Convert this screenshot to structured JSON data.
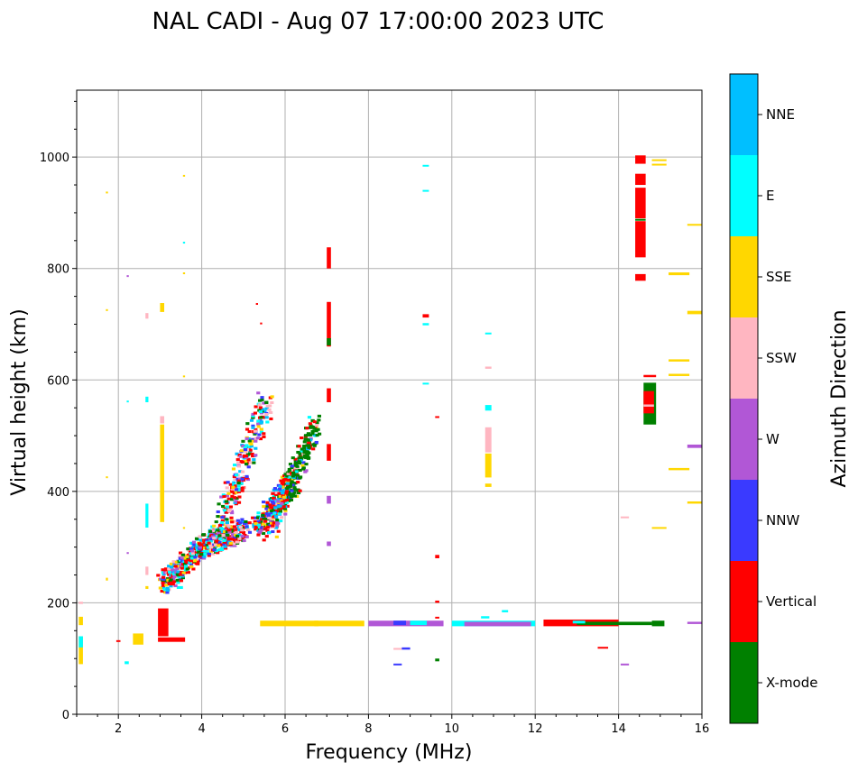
{
  "chart_data": {
    "type": "scatter",
    "title": "NAL CADI - Aug 07 17:00:00 2023 UTC",
    "xlabel": "Frequency (MHz)",
    "ylabel": "Virtual height (km)",
    "xlim": [
      1,
      16
    ],
    "ylim": [
      0,
      1120
    ],
    "xticks": [
      2,
      4,
      6,
      8,
      10,
      12,
      14,
      16
    ],
    "yticks": [
      0,
      200,
      400,
      600,
      800,
      1000
    ],
    "grid": true,
    "colorbar": {
      "label": "Azimuth Direction",
      "categories": [
        {
          "name": "X-mode",
          "color": "#008000"
        },
        {
          "name": "Vertical",
          "color": "#ff0000"
        },
        {
          "name": "NNW",
          "color": "#3a3aff"
        },
        {
          "name": "W",
          "color": "#b157d6"
        },
        {
          "name": "SSW",
          "color": "#ffb6c1"
        },
        {
          "name": "SSE",
          "color": "#ffd700"
        },
        {
          "name": "E",
          "color": "#00ffff"
        },
        {
          "name": "NNE",
          "color": "#00bfff"
        }
      ]
    },
    "segments": [
      {
        "f0": 1.05,
        "f1": 1.15,
        "h0": 90,
        "h1": 140,
        "cat": "SSE"
      },
      {
        "f0": 1.05,
        "f1": 1.15,
        "h0": 160,
        "h1": 175,
        "cat": "SSE"
      },
      {
        "f0": 1.05,
        "f1": 1.15,
        "h0": 198,
        "h1": 202,
        "cat": "SSW"
      },
      {
        "f0": 1.05,
        "f1": 1.15,
        "h0": 120,
        "h1": 140,
        "cat": "E"
      },
      {
        "f0": 1.7,
        "f1": 1.75,
        "h0": 935,
        "h1": 938,
        "cat": "SSE"
      },
      {
        "f0": 1.7,
        "f1": 1.75,
        "h0": 725,
        "h1": 727,
        "cat": "SSE"
      },
      {
        "f0": 1.7,
        "f1": 1.75,
        "h0": 424,
        "h1": 427,
        "cat": "SSE"
      },
      {
        "f0": 1.7,
        "f1": 1.75,
        "h0": 240,
        "h1": 245,
        "cat": "SSE"
      },
      {
        "f0": 1.95,
        "f1": 2.05,
        "h0": 130,
        "h1": 133,
        "cat": "Vertical"
      },
      {
        "f0": 2.15,
        "f1": 2.25,
        "h0": 90,
        "h1": 95,
        "cat": "E"
      },
      {
        "f0": 2.2,
        "f1": 2.25,
        "h0": 785,
        "h1": 788,
        "cat": "W"
      },
      {
        "f0": 2.2,
        "f1": 2.25,
        "h0": 560,
        "h1": 563,
        "cat": "E"
      },
      {
        "f0": 2.2,
        "f1": 2.25,
        "h0": 288,
        "h1": 291,
        "cat": "W"
      },
      {
        "f0": 2.35,
        "f1": 2.6,
        "h0": 125,
        "h1": 145,
        "cat": "SSE"
      },
      {
        "f0": 2.65,
        "f1": 2.72,
        "h0": 710,
        "h1": 720,
        "cat": "SSW"
      },
      {
        "f0": 2.65,
        "f1": 2.72,
        "h0": 560,
        "h1": 570,
        "cat": "E"
      },
      {
        "f0": 2.65,
        "f1": 2.72,
        "h0": 335,
        "h1": 378,
        "cat": "E"
      },
      {
        "f0": 2.65,
        "f1": 2.72,
        "h0": 250,
        "h1": 265,
        "cat": "SSW"
      },
      {
        "f0": 2.65,
        "f1": 2.72,
        "h0": 225,
        "h1": 230,
        "cat": "SSE"
      },
      {
        "f0": 3.0,
        "f1": 3.1,
        "h0": 345,
        "h1": 520,
        "cat": "SSE"
      },
      {
        "f0": 3.0,
        "f1": 3.1,
        "h0": 722,
        "h1": 738,
        "cat": "SSE"
      },
      {
        "f0": 3.0,
        "f1": 3.1,
        "h0": 522,
        "h1": 535,
        "cat": "SSW"
      },
      {
        "f0": 2.95,
        "f1": 3.6,
        "h0": 130,
        "h1": 138,
        "cat": "Vertical"
      },
      {
        "f0": 2.95,
        "f1": 3.2,
        "h0": 140,
        "h1": 190,
        "cat": "Vertical"
      },
      {
        "f0": 3.55,
        "f1": 3.6,
        "h0": 965,
        "h1": 968,
        "cat": "SSE"
      },
      {
        "f0": 3.55,
        "f1": 3.6,
        "h0": 845,
        "h1": 848,
        "cat": "E"
      },
      {
        "f0": 3.55,
        "f1": 3.6,
        "h0": 790,
        "h1": 793,
        "cat": "SSE"
      },
      {
        "f0": 3.55,
        "f1": 3.6,
        "h0": 605,
        "h1": 608,
        "cat": "SSE"
      },
      {
        "f0": 3.55,
        "f1": 3.6,
        "h0": 333,
        "h1": 336,
        "cat": "SSE"
      },
      {
        "f0": 3.4,
        "f1": 3.55,
        "h0": 225,
        "h1": 230,
        "cat": "E"
      },
      {
        "f0": 5.3,
        "f1": 5.35,
        "h0": 735,
        "h1": 738,
        "cat": "Vertical"
      },
      {
        "f0": 5.4,
        "f1": 5.45,
        "h0": 700,
        "h1": 703,
        "cat": "Vertical"
      },
      {
        "f0": 5.4,
        "f1": 6.8,
        "h0": 158,
        "h1": 168,
        "cat": "SSE"
      },
      {
        "f0": 7.0,
        "f1": 7.1,
        "h0": 800,
        "h1": 838,
        "cat": "Vertical"
      },
      {
        "f0": 7.0,
        "f1": 7.1,
        "h0": 660,
        "h1": 740,
        "cat": "Vertical"
      },
      {
        "f0": 7.0,
        "f1": 7.1,
        "h0": 560,
        "h1": 585,
        "cat": "Vertical"
      },
      {
        "f0": 7.0,
        "f1": 7.1,
        "h0": 455,
        "h1": 485,
        "cat": "Vertical"
      },
      {
        "f0": 7.0,
        "f1": 7.1,
        "h0": 378,
        "h1": 392,
        "cat": "W"
      },
      {
        "f0": 7.0,
        "f1": 7.1,
        "h0": 302,
        "h1": 310,
        "cat": "W"
      },
      {
        "f0": 7.0,
        "f1": 7.1,
        "h0": 662,
        "h1": 675,
        "cat": "X-mode"
      },
      {
        "f0": 6.7,
        "f1": 7.9,
        "h0": 158,
        "h1": 168,
        "cat": "SSE"
      },
      {
        "f0": 8.0,
        "f1": 9.8,
        "h0": 158,
        "h1": 168,
        "cat": "W"
      },
      {
        "f0": 8.6,
        "f1": 8.9,
        "h0": 160,
        "h1": 168,
        "cat": "NNW"
      },
      {
        "f0": 9.0,
        "f1": 9.4,
        "h0": 160,
        "h1": 168,
        "cat": "E"
      },
      {
        "f0": 8.6,
        "f1": 8.8,
        "h0": 116,
        "h1": 119,
        "cat": "SSW"
      },
      {
        "f0": 8.8,
        "f1": 9.0,
        "h0": 116,
        "h1": 120,
        "cat": "NNW"
      },
      {
        "f0": 8.6,
        "f1": 8.8,
        "h0": 88,
        "h1": 91,
        "cat": "NNW"
      },
      {
        "f0": 9.3,
        "f1": 9.45,
        "h0": 983,
        "h1": 986,
        "cat": "E"
      },
      {
        "f0": 9.3,
        "f1": 9.45,
        "h0": 938,
        "h1": 941,
        "cat": "E"
      },
      {
        "f0": 9.3,
        "f1": 9.45,
        "h0": 712,
        "h1": 718,
        "cat": "Vertical"
      },
      {
        "f0": 9.3,
        "f1": 9.45,
        "h0": 698,
        "h1": 702,
        "cat": "E"
      },
      {
        "f0": 9.3,
        "f1": 9.45,
        "h0": 592,
        "h1": 595,
        "cat": "E"
      },
      {
        "f0": 9.6,
        "f1": 9.7,
        "h0": 532,
        "h1": 535,
        "cat": "Vertical"
      },
      {
        "f0": 9.6,
        "f1": 9.7,
        "h0": 280,
        "h1": 286,
        "cat": "Vertical"
      },
      {
        "f0": 9.6,
        "f1": 9.7,
        "h0": 200,
        "h1": 204,
        "cat": "Vertical"
      },
      {
        "f0": 9.6,
        "f1": 9.7,
        "h0": 172,
        "h1": 175,
        "cat": "Vertical"
      },
      {
        "f0": 9.6,
        "f1": 9.7,
        "h0": 95,
        "h1": 100,
        "cat": "X-mode"
      },
      {
        "f0": 10.0,
        "f1": 12.0,
        "h0": 158,
        "h1": 168,
        "cat": "E"
      },
      {
        "f0": 10.3,
        "f1": 11.9,
        "h0": 158,
        "h1": 166,
        "cat": "W"
      },
      {
        "f0": 11.2,
        "f1": 11.35,
        "h0": 183,
        "h1": 187,
        "cat": "E"
      },
      {
        "f0": 10.7,
        "f1": 10.9,
        "h0": 172,
        "h1": 176,
        "cat": "E"
      },
      {
        "f0": 10.8,
        "f1": 10.95,
        "h0": 682,
        "h1": 685,
        "cat": "E"
      },
      {
        "f0": 10.8,
        "f1": 10.95,
        "h0": 620,
        "h1": 624,
        "cat": "SSW"
      },
      {
        "f0": 10.8,
        "f1": 10.95,
        "h0": 545,
        "h1": 555,
        "cat": "E"
      },
      {
        "f0": 10.8,
        "f1": 10.95,
        "h0": 470,
        "h1": 515,
        "cat": "SSW"
      },
      {
        "f0": 10.8,
        "f1": 10.95,
        "h0": 425,
        "h1": 468,
        "cat": "SSE"
      },
      {
        "f0": 10.8,
        "f1": 10.95,
        "h0": 408,
        "h1": 414,
        "cat": "SSE"
      },
      {
        "f0": 12.2,
        "f1": 14.0,
        "h0": 158,
        "h1": 170,
        "cat": "Vertical"
      },
      {
        "f0": 13.0,
        "f1": 14.8,
        "h0": 160,
        "h1": 166,
        "cat": "X-mode"
      },
      {
        "f0": 12.9,
        "f1": 13.2,
        "h0": 163,
        "h1": 168,
        "cat": "E"
      },
      {
        "f0": 14.8,
        "f1": 15.1,
        "h0": 158,
        "h1": 168,
        "cat": "X-mode"
      },
      {
        "f0": 13.5,
        "f1": 13.75,
        "h0": 118,
        "h1": 121,
        "cat": "Vertical"
      },
      {
        "f0": 14.05,
        "f1": 14.25,
        "h0": 352,
        "h1": 355,
        "cat": "SSW"
      },
      {
        "f0": 14.05,
        "f1": 14.25,
        "h0": 88,
        "h1": 91,
        "cat": "W"
      },
      {
        "f0": 14.4,
        "f1": 14.65,
        "h0": 988,
        "h1": 1003,
        "cat": "Vertical"
      },
      {
        "f0": 14.4,
        "f1": 14.65,
        "h0": 950,
        "h1": 970,
        "cat": "Vertical"
      },
      {
        "f0": 14.4,
        "f1": 14.65,
        "h0": 890,
        "h1": 945,
        "cat": "Vertical"
      },
      {
        "f0": 14.4,
        "f1": 14.65,
        "h0": 820,
        "h1": 885,
        "cat": "Vertical"
      },
      {
        "f0": 14.4,
        "f1": 14.65,
        "h0": 886,
        "h1": 889,
        "cat": "X-mode"
      },
      {
        "f0": 14.4,
        "f1": 14.65,
        "h0": 778,
        "h1": 790,
        "cat": "Vertical"
      },
      {
        "f0": 14.6,
        "f1": 14.9,
        "h0": 605,
        "h1": 609,
        "cat": "Vertical"
      },
      {
        "f0": 14.6,
        "f1": 14.9,
        "h0": 520,
        "h1": 595,
        "cat": "X-mode"
      },
      {
        "f0": 14.6,
        "f1": 14.85,
        "h0": 540,
        "h1": 580,
        "cat": "Vertical"
      },
      {
        "f0": 14.6,
        "f1": 14.85,
        "h0": 552,
        "h1": 556,
        "cat": "SSW"
      },
      {
        "f0": 14.8,
        "f1": 15.15,
        "h0": 993,
        "h1": 996,
        "cat": "SSE"
      },
      {
        "f0": 14.8,
        "f1": 15.15,
        "h0": 985,
        "h1": 988,
        "cat": "SSE"
      },
      {
        "f0": 14.8,
        "f1": 15.15,
        "h0": 333,
        "h1": 336,
        "cat": "SSE"
      },
      {
        "f0": 15.2,
        "f1": 15.7,
        "h0": 788,
        "h1": 793,
        "cat": "SSE"
      },
      {
        "f0": 15.2,
        "f1": 15.7,
        "h0": 633,
        "h1": 637,
        "cat": "SSE"
      },
      {
        "f0": 15.2,
        "f1": 15.7,
        "h0": 607,
        "h1": 611,
        "cat": "SSE"
      },
      {
        "f0": 15.2,
        "f1": 15.7,
        "h0": 438,
        "h1": 442,
        "cat": "SSE"
      },
      {
        "f0": 15.65,
        "f1": 16.0,
        "h0": 877,
        "h1": 880,
        "cat": "SSE"
      },
      {
        "f0": 15.65,
        "f1": 16.0,
        "h0": 718,
        "h1": 724,
        "cat": "SSE"
      },
      {
        "f0": 15.65,
        "f1": 16.0,
        "h0": 478,
        "h1": 484,
        "cat": "W"
      },
      {
        "f0": 15.65,
        "f1": 16.0,
        "h0": 378,
        "h1": 382,
        "cat": "SSE"
      },
      {
        "f0": 15.65,
        "f1": 16.0,
        "h0": 162,
        "h1": 166,
        "cat": "W"
      }
    ],
    "trace_bands": [
      {
        "start": [
          3.0,
          230
        ],
        "end": [
          4.0,
          300
        ],
        "width": 0.18
      },
      {
        "start": [
          4.0,
          300
        ],
        "end": [
          5.0,
          330
        ],
        "width": 0.3
      },
      {
        "start": [
          4.3,
          310
        ],
        "end": [
          5.5,
          560
        ],
        "width": 0.4
      },
      {
        "start": [
          5.3,
          330
        ],
        "end": [
          6.2,
          420
        ],
        "width": 0.35
      },
      {
        "start": [
          5.6,
          330
        ],
        "end": [
          6.7,
          520
        ],
        "width": 0.3
      }
    ]
  }
}
